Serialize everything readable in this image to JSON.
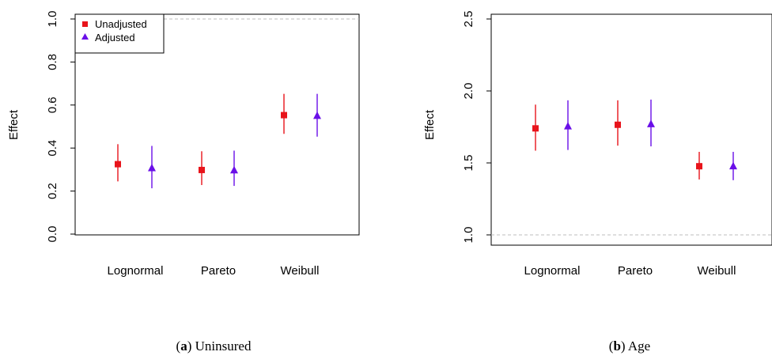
{
  "colors": {
    "unadjusted": "#e8141b",
    "adjusted": "#6a0fe8",
    "reference": "#bdbdbd"
  },
  "chart_data": [
    {
      "type": "scatter",
      "caption_letter": "a",
      "caption_text": "Uninsured",
      "ylabel": "Effect",
      "categories": [
        "Lognormal",
        "Pareto",
        "Weibull"
      ],
      "ylim": [
        0.0,
        1.0
      ],
      "yticks": [
        "0.0",
        "0.2",
        "0.4",
        "0.6",
        "0.8",
        "1.0"
      ],
      "reference_line": 1.0,
      "legend": {
        "placement": "top-left",
        "entries": [
          "Unadjusted",
          "Adjusted"
        ]
      },
      "series": [
        {
          "name": "Unadjusted",
          "marker": "square",
          "values": [
            0.325,
            0.298,
            0.553
          ],
          "lower": [
            0.245,
            0.228,
            0.466
          ],
          "upper": [
            0.418,
            0.385,
            0.652
          ]
        },
        {
          "name": "Adjusted",
          "marker": "triangle",
          "values": [
            0.307,
            0.297,
            0.55
          ],
          "lower": [
            0.213,
            0.224,
            0.453
          ],
          "upper": [
            0.41,
            0.388,
            0.652
          ]
        }
      ]
    },
    {
      "type": "scatter",
      "caption_letter": "b",
      "caption_text": "Age",
      "ylabel": "Effect",
      "categories": [
        "Lognormal",
        "Pareto",
        "Weibull"
      ],
      "ylim": [
        0.97,
        2.57
      ],
      "yticks": [
        "1.0",
        "1.5",
        "2.0",
        "2.5"
      ],
      "reference_line": 1.0,
      "series": [
        {
          "name": "Unadjusted",
          "marker": "square",
          "values": [
            1.74,
            1.765,
            1.477
          ],
          "lower": [
            1.585,
            1.62,
            1.385
          ],
          "upper": [
            1.905,
            1.935,
            1.577
          ]
        },
        {
          "name": "Adjusted",
          "marker": "triangle",
          "values": [
            1.755,
            1.77,
            1.477
          ],
          "lower": [
            1.59,
            1.615,
            1.38
          ],
          "upper": [
            1.935,
            1.94,
            1.577
          ]
        }
      ]
    }
  ]
}
